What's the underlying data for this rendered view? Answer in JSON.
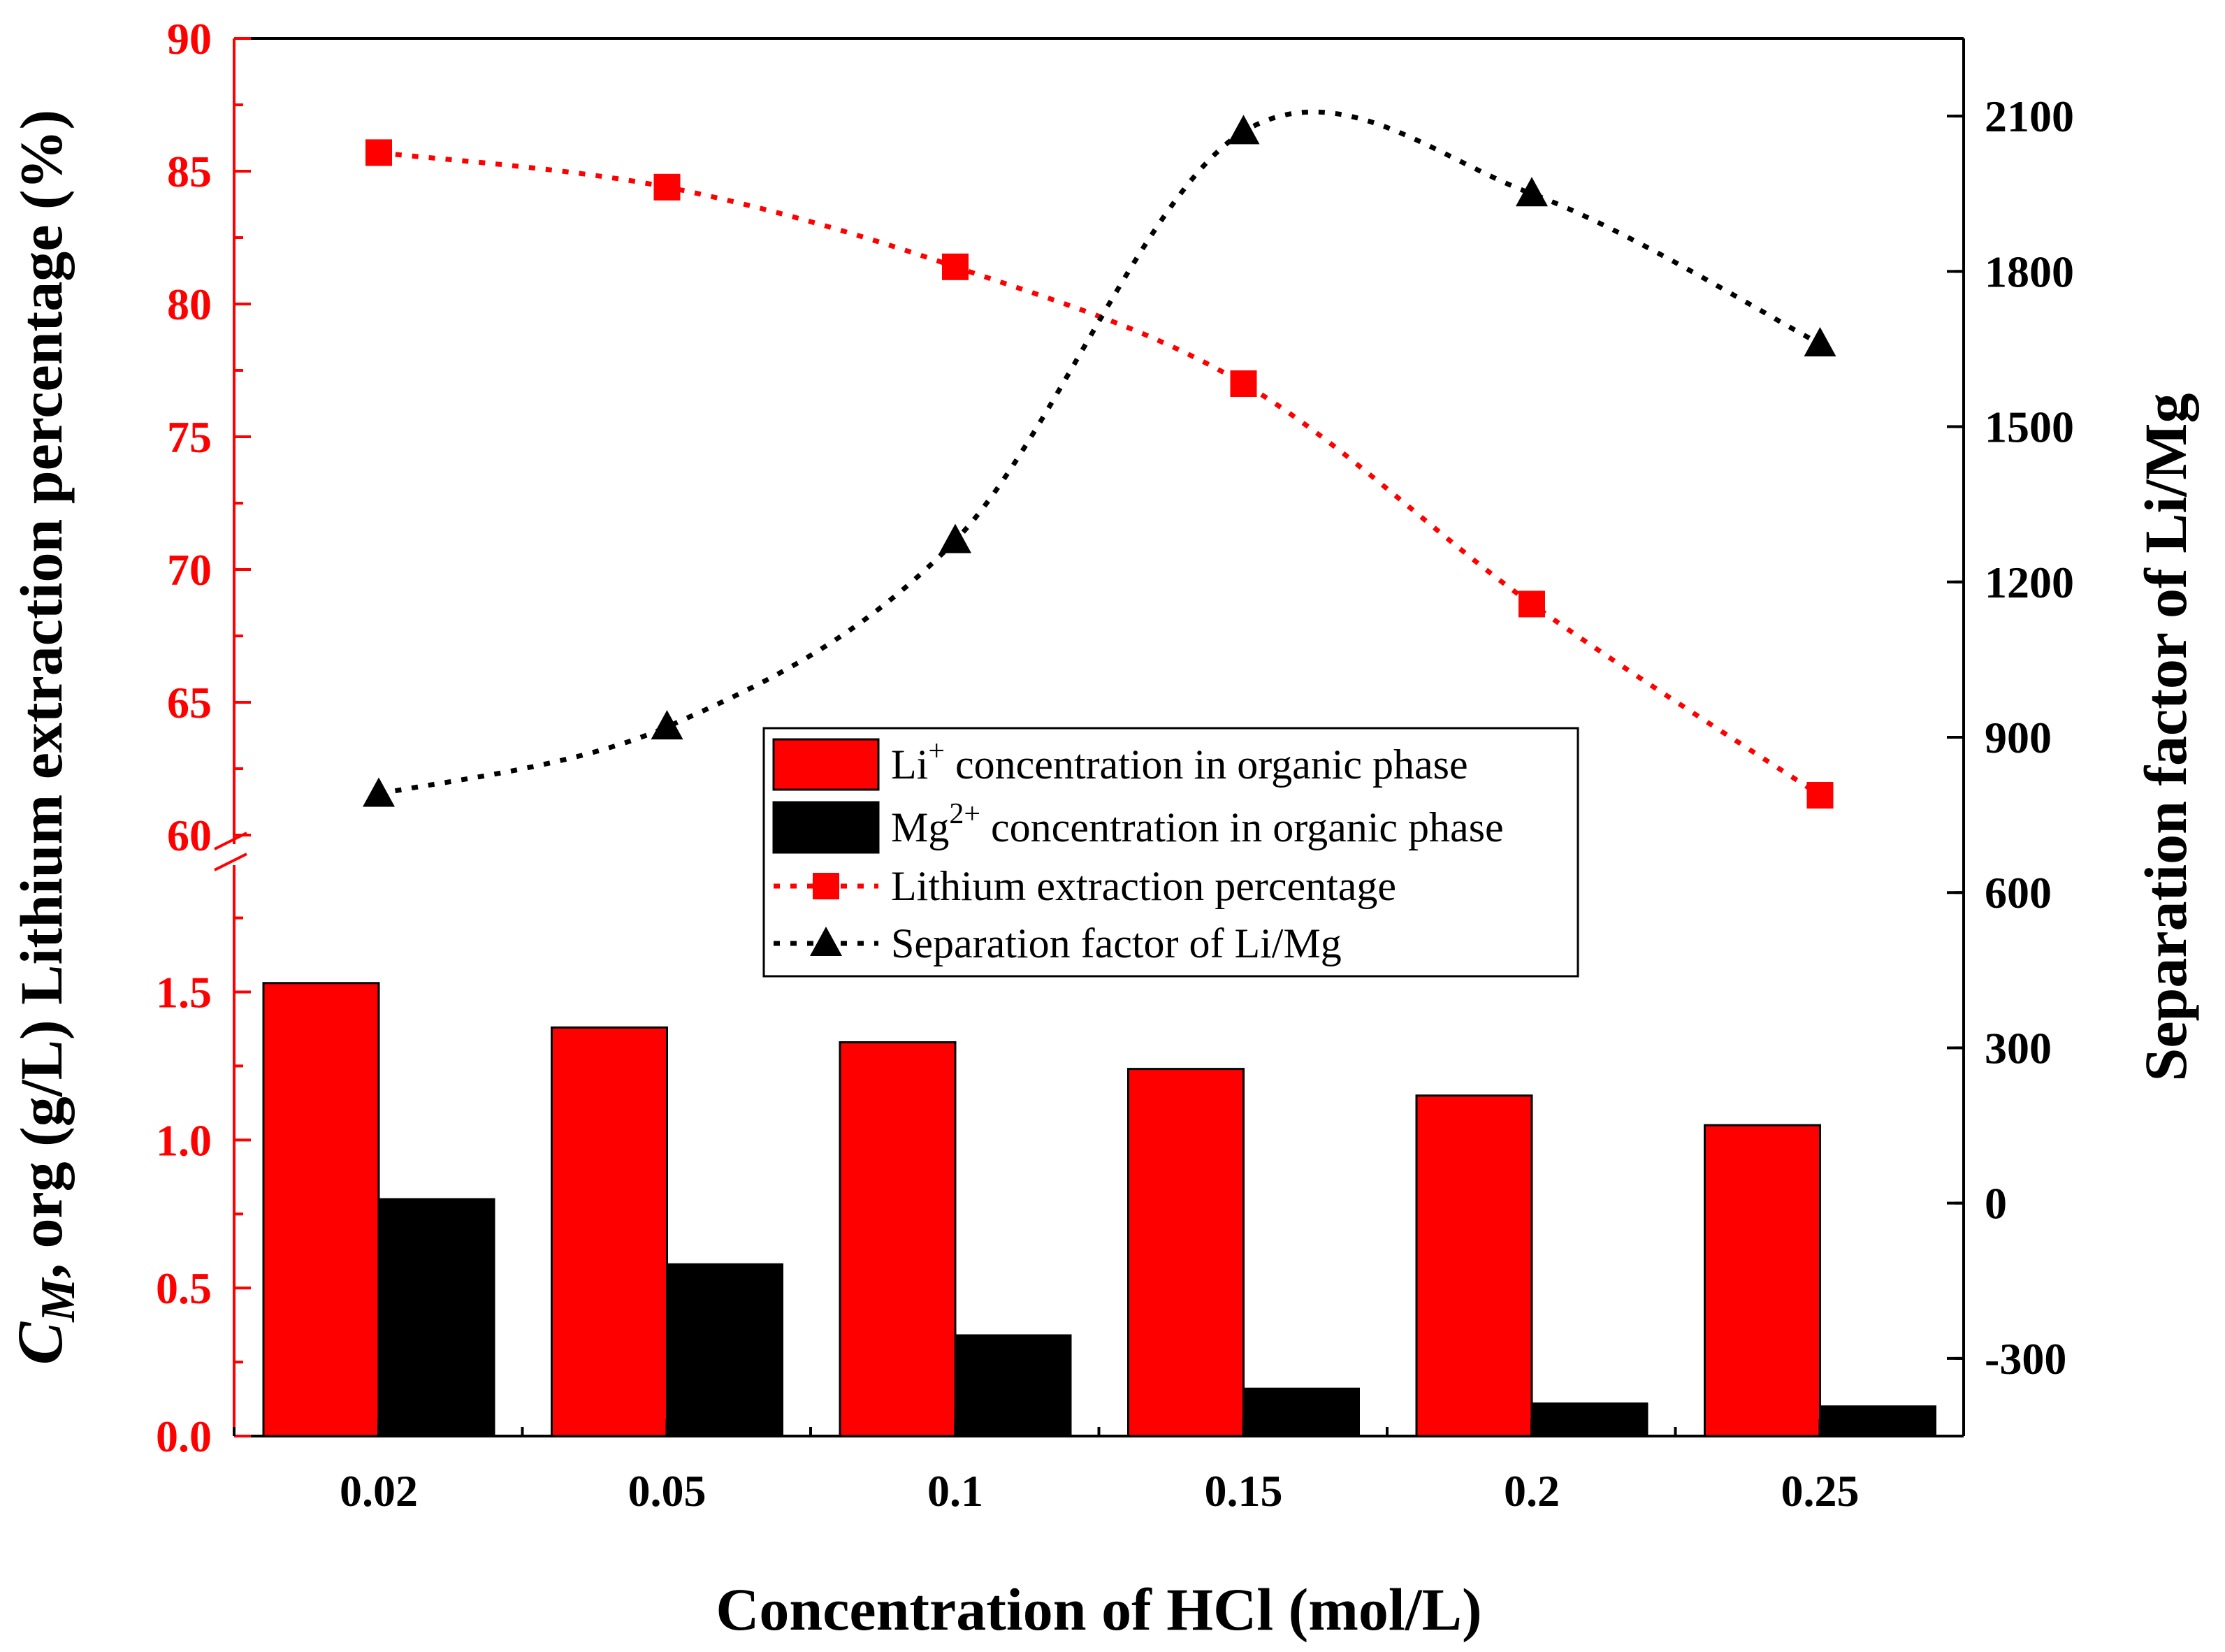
{
  "chart_data": {
    "type": "bar+line",
    "categories": [
      "0.02",
      "0.05",
      "0.1",
      "0.15",
      "0.2",
      "0.25"
    ],
    "xlabel": "Concentration of HCl (mol/L)",
    "ylabel_left_top": "Lithium extraction percentage (%)",
    "ylabel_left_bottom": "C_M, org (g/L)",
    "ylabel_right": "Separation factor of Li/Mg",
    "left_top_ticks": [
      "60",
      "65",
      "70",
      "75",
      "80",
      "85",
      "90"
    ],
    "left_top_range": [
      60,
      90
    ],
    "left_bottom_ticks": [
      "0.0",
      "0.5",
      "1.0",
      "1.5"
    ],
    "left_bottom_range": [
      0,
      1.9
    ],
    "right_ticks": [
      "-300",
      "0",
      "300",
      "600",
      "900",
      "1200",
      "1500",
      "1800",
      "2100"
    ],
    "right_range": [
      -450,
      2250
    ],
    "bars": [
      {
        "name": "Li⁺ concentration in organic phase",
        "color": "#ff0000",
        "values": [
          1.53,
          1.38,
          1.33,
          1.24,
          1.15,
          1.05
        ]
      },
      {
        "name": "Mg²⁺ concentration in organic phase",
        "color": "#000000",
        "values": [
          0.8,
          0.58,
          0.34,
          0.16,
          0.11,
          0.1
        ]
      }
    ],
    "lines": [
      {
        "name": "Lithium extraction percentage",
        "color": "#ff0000",
        "marker": "square",
        "axis": "left_top",
        "values": [
          85.7,
          84.4,
          81.4,
          77.0,
          68.7,
          61.5
        ]
      },
      {
        "name": "Separation factor of Li/Mg",
        "color": "#000000",
        "marker": "triangle",
        "axis": "right",
        "values": [
          790,
          920,
          1280,
          2070,
          1950,
          1660
        ]
      }
    ],
    "legend": {
      "placement": "center",
      "items": [
        {
          "pre": "Li",
          "sup": "+",
          "post": " concentration in organic phase"
        },
        {
          "pre": "Mg",
          "sup": "2+",
          "post": " concentration in organic phase"
        },
        {
          "pre": "Lithium extraction percentage",
          "sup": "",
          "post": ""
        },
        {
          "pre": "Separation factor of Li/Mg",
          "sup": "",
          "post": ""
        }
      ]
    },
    "ylabel_bottom_parts": {
      "italic_C": "C",
      "sub_M": "M",
      "rest": ", org (g/L)"
    }
  }
}
